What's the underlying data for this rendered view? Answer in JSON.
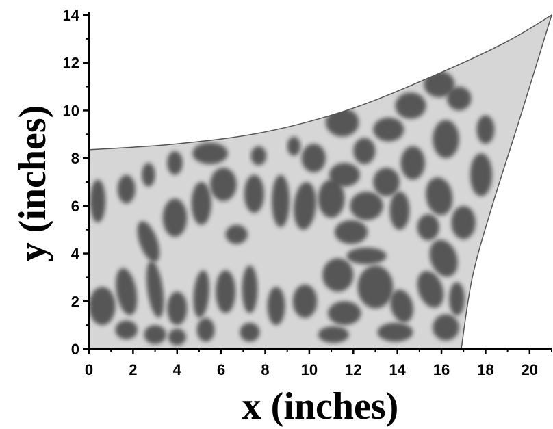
{
  "chart_data": {
    "type": "heatmap",
    "xlabel": "x (inches)",
    "ylabel": "y (inches)",
    "xlim": [
      0,
      21
    ],
    "ylim": [
      0,
      14
    ],
    "x_ticks": [
      0,
      2,
      4,
      6,
      8,
      10,
      12,
      14,
      16,
      18,
      20
    ],
    "y_ticks": [
      0,
      2,
      4,
      6,
      8,
      10,
      12,
      14
    ],
    "domain_boundary": {
      "left_edge_x": 0,
      "bottom_edge_y": 0,
      "bottom_right_corner": [
        16.9,
        0
      ],
      "top_left_corner": [
        0,
        8.35
      ],
      "top_right_corner": [
        21,
        14
      ],
      "top_edge": [
        [
          0,
          8.35
        ],
        [
          4,
          8.6
        ],
        [
          8,
          9.1
        ],
        [
          12,
          10.1
        ],
        [
          16,
          11.6
        ],
        [
          19,
          12.9
        ],
        [
          21,
          14
        ]
      ],
      "right_edge": [
        [
          16.9,
          0
        ],
        [
          17.4,
          3
        ],
        [
          18.3,
          6
        ],
        [
          19.5,
          9.5
        ],
        [
          21,
          14
        ]
      ]
    },
    "colors": {
      "domain_fill": "#d6d6d6",
      "high_amplitude": "#4a4a4a",
      "outline": "#555555"
    }
  }
}
